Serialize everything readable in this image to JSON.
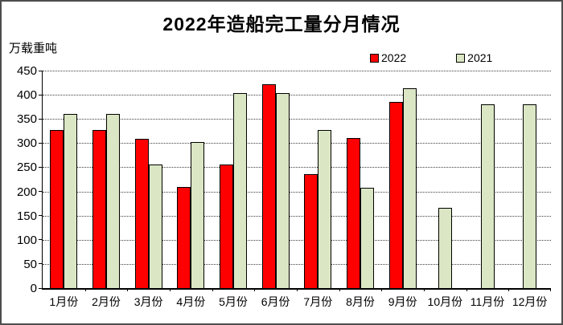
{
  "title": "2022年造船完工量分月情况",
  "y_axis": {
    "unit_label": "万载重吨",
    "tick_labels": [
      "450",
      "400",
      "350",
      "300",
      "250",
      "200",
      "150",
      "100",
      "50",
      "0"
    ]
  },
  "legend": {
    "items": [
      {
        "label": "2022",
        "color": "#ff0000"
      },
      {
        "label": "2021",
        "color": "#dbe6c4"
      }
    ]
  },
  "chart_data": {
    "type": "bar",
    "title": "2022年造船完工量分月情况",
    "ylabel": "万载重吨",
    "xlabel": "",
    "categories": [
      "1月份",
      "2月份",
      "3月份",
      "4月份",
      "5月份",
      "6月份",
      "7月份",
      "8月份",
      "9月份",
      "10月份",
      "11月份",
      "12月份"
    ],
    "series": [
      {
        "name": "2022",
        "color": "#ff0000",
        "values": [
          327,
          327,
          309,
          210,
          256,
          421,
          235,
          310,
          386,
          null,
          null,
          null
        ]
      },
      {
        "name": "2021",
        "color": "#dbe6c4",
        "values": [
          361,
          361,
          255,
          302,
          404,
          404,
          327,
          208,
          414,
          166,
          381,
          381
        ]
      }
    ],
    "ylim": [
      0,
      450
    ],
    "ytick_step": 50,
    "grid": "horizontal-dotted",
    "legend_position": "top-right",
    "bar_border_color": "#000000"
  }
}
